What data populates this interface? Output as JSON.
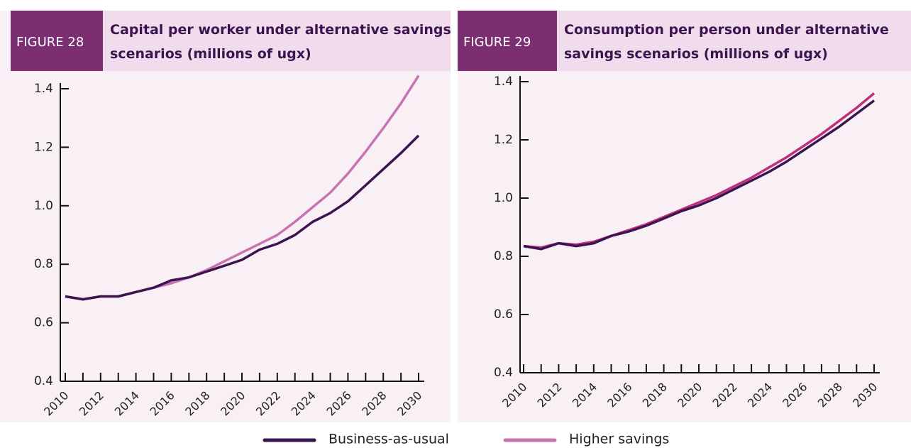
{
  "chart_data": [
    {
      "type": "line",
      "figure": "FIGURE 28",
      "title": "Capital per worker under alternative savings scenarios (millions of ugx)",
      "x": [
        2010,
        2011,
        2012,
        2013,
        2014,
        2015,
        2016,
        2017,
        2018,
        2019,
        2020,
        2021,
        2022,
        2023,
        2024,
        2025,
        2026,
        2027,
        2028,
        2029,
        2030
      ],
      "series": [
        {
          "name": "Business-as-usual",
          "color": "#3b1450",
          "values": [
            0.69,
            0.68,
            0.69,
            0.69,
            0.705,
            0.72,
            0.745,
            0.755,
            0.775,
            0.795,
            0.815,
            0.85,
            0.87,
            0.9,
            0.945,
            0.975,
            1.015,
            1.07,
            1.125,
            1.18,
            1.24
          ]
        },
        {
          "name": "Higher savings",
          "color": "#c774b0",
          "values": [
            0.69,
            0.68,
            0.69,
            0.69,
            0.705,
            0.72,
            0.735,
            0.755,
            0.78,
            0.81,
            0.84,
            0.87,
            0.9,
            0.945,
            0.995,
            1.045,
            1.11,
            1.185,
            1.265,
            1.35,
            1.445
          ]
        }
      ],
      "xlim": [
        2010,
        2030
      ],
      "xticks": [
        2010,
        2012,
        2014,
        2016,
        2018,
        2020,
        2022,
        2024,
        2026,
        2028,
        2030
      ],
      "ylim": [
        0.4,
        1.45
      ],
      "yticks": [
        0.4,
        0.6,
        0.8,
        {
          "value": 1,
          "label": "1.0"
        },
        1.2,
        1.4
      ]
    },
    {
      "type": "line",
      "figure": "FIGURE 29",
      "title": "Consumption per person under alternative savings scenarios (millions of ugx)",
      "x": [
        2010,
        2011,
        2012,
        2013,
        2014,
        2015,
        2016,
        2017,
        2018,
        2019,
        2020,
        2021,
        2022,
        2023,
        2024,
        2025,
        2026,
        2027,
        2028,
        2029,
        2030
      ],
      "series": [
        {
          "color": "#3b1450",
          "values": [
            0.835,
            0.825,
            0.845,
            0.835,
            0.845,
            0.87,
            0.885,
            0.905,
            0.93,
            0.955,
            0.975,
            1.0,
            1.03,
            1.06,
            1.09,
            1.125,
            1.165,
            1.205,
            1.245,
            1.29,
            1.335
          ]
        },
        {
          "color": "#c02f7a",
          "values": [
            0.835,
            0.83,
            0.845,
            0.84,
            0.85,
            0.87,
            0.89,
            0.91,
            0.935,
            0.96,
            0.985,
            1.01,
            1.04,
            1.07,
            1.105,
            1.14,
            1.18,
            1.22,
            1.265,
            1.31,
            1.36
          ]
        }
      ],
      "xlim": [
        2010,
        2030
      ],
      "xticks": [
        2010,
        2012,
        2014,
        2016,
        2018,
        2020,
        2022,
        2024,
        2026,
        2028,
        2030
      ],
      "ylim": [
        0.4,
        1.4
      ],
      "yticks": [
        0.4,
        0.6,
        0.8,
        {
          "value": 1,
          "label": "1.0"
        },
        1.2,
        1.4
      ]
    }
  ]
}
